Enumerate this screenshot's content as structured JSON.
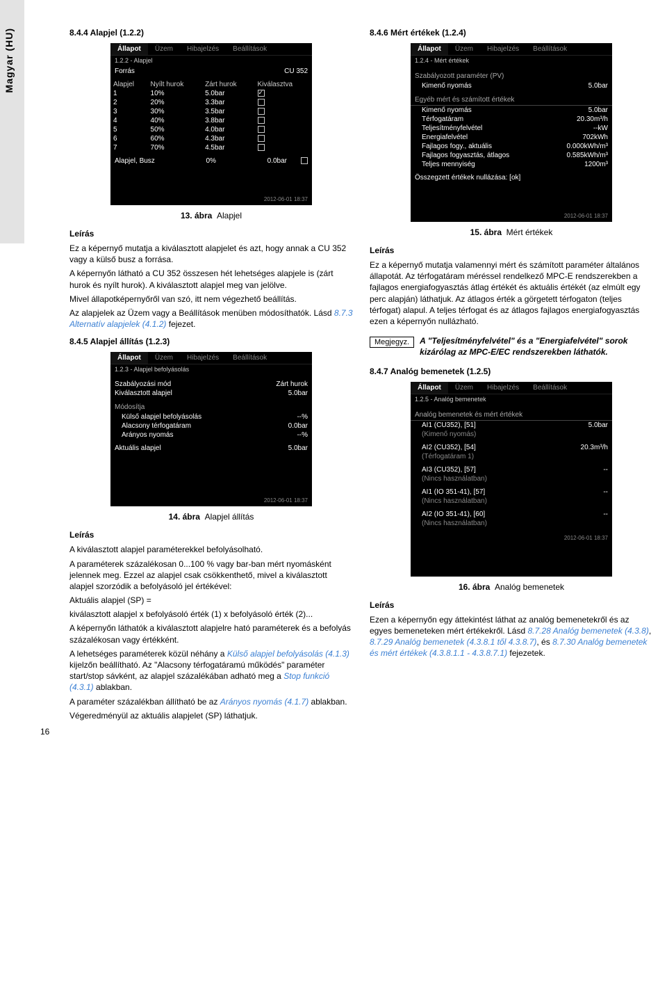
{
  "sidebar_label": "Magyar (HU)",
  "page_number": "16",
  "timestamp": "2012-06-01 18:37",
  "tabs": [
    "Állapot",
    "Üzem",
    "Hibajelzés",
    "Beállítások"
  ],
  "note_label": "Megjegyz.",
  "sec1": {
    "heading": "8.4.4 Alapjel (1.2.2)",
    "bread": "1.2.2 - Alapjel",
    "source_lbl": "Forrás",
    "source_val": "CU 352",
    "cols": [
      "Alapjel",
      "Nyílt hurok",
      "Zárt hurok",
      "Kiválasztva"
    ],
    "rows": [
      {
        "n": "1",
        "o": "10%",
        "c": "5.0bar",
        "sel": true
      },
      {
        "n": "2",
        "o": "20%",
        "c": "3.3bar",
        "sel": false
      },
      {
        "n": "3",
        "o": "30%",
        "c": "3.5bar",
        "sel": false
      },
      {
        "n": "4",
        "o": "40%",
        "c": "3.8bar",
        "sel": false
      },
      {
        "n": "5",
        "o": "50%",
        "c": "4.0bar",
        "sel": false
      },
      {
        "n": "6",
        "o": "60%",
        "c": "4.3bar",
        "sel": false
      },
      {
        "n": "7",
        "o": "70%",
        "c": "4.5bar",
        "sel": false
      }
    ],
    "bus_lbl": "Alapjel, Busz",
    "bus_o": "0%",
    "bus_c": "0.0bar",
    "caption": "13. ábra",
    "caption2": "Alapjel",
    "desc_h": "Leírás",
    "p1": "Ez a képernyő mutatja a kiválasztott alapjelet és azt, hogy annak a CU 352 vagy a külső busz a forrása.",
    "p2": "A képernyőn látható a CU 352 összesen hét lehetséges alapjele is (zárt hurok és nyílt hurok). A kiválasztott alapjel meg van jelölve.",
    "p3": "Mivel állapotképernyőről van szó, itt nem végezhető beállítás.",
    "p4a": "Az alapjelek az Üzem vagy a Beállítások menüben módosíthatók. Lásd ",
    "p4link": "8.7.3 Alternatív alapjelek (4.1.2)",
    "p4b": " fejezet."
  },
  "sec2": {
    "heading": "8.4.5 Alapjel állítás (1.2.3)",
    "bread": "1.2.3 - Alapjel befolyásolás",
    "r_mode_l": "Szabályozási mód",
    "r_mode_v": "Zárt hurok",
    "r_sp_l": "Kiválasztott alapjel",
    "r_sp_v": "5.0bar",
    "mods": "Módosítja",
    "m1_l": "Külső alapjel befolyásolás",
    "m1_v": "--%",
    "m2_l": "Alacsony térfogatáram",
    "m2_v": "0.0bar",
    "m3_l": "Arányos nyomás",
    "m3_v": "--%",
    "act_l": "Aktuális alapjel",
    "act_v": "5.0bar",
    "caption": "14. ábra",
    "caption2": "Alapjel állítás",
    "desc_h": "Leírás",
    "p1": "A kiválasztott alapjel paraméterekkel befolyásolható.",
    "p2": "A paraméterek százalékosan 0...100 % vagy bar-ban mért nyomásként jelennek meg. Ezzel az alapjel csak csökkenthető, mivel a kiválasztott alapjel szorzódik a befolyásoló jel értékével:",
    "p3": "Aktuális alapjel (SP) =",
    "p4": "kiválasztott alapjel x befolyásoló érték (1) x befolyásoló érték (2)...",
    "p5": "A képernyőn láthatók a kiválasztott alapjelre ható paraméterek és a befolyás százalékosan vagy értékként.",
    "p6a": "A lehetséges paraméterek közül néhány a ",
    "p6l": "Külső alapjel befolyásolás (4.1.3)",
    "p6b": " kijelzőn beállítható. Az \"Alacsony térfogatáramú működés\" paraméter start/stop sávként, az alapjel százalékában adható meg a ",
    "p6l2": "Stop funkció (4.3.1)",
    "p6c": " ablakban.",
    "p7a": "A paraméter százalékban állítható be az ",
    "p7l": "Arányos nyomás (4.1.7)",
    "p7b": " ablakban.",
    "p8": "Végeredményül az aktuális alapjelet (SP) láthatjuk."
  },
  "sec3": {
    "heading": "8.4.6 Mért értékek (1.2.4)",
    "bread": "1.2.4 - Mért értékek",
    "pv_h": "Szabályozott paraméter (PV)",
    "pv_l": "Kimenő nyomás",
    "pv_v": "5.0bar",
    "other_h": "Egyéb mért és számított értékek",
    "rows": [
      {
        "l": "Kimenő nyomás",
        "v": "5.0bar"
      },
      {
        "l": "Térfogatáram",
        "v": "20.30m³/h"
      },
      {
        "l": "Teljesítményfelvétel",
        "v": "--kW"
      },
      {
        "l": "Energiafelvétel",
        "v": "702kWh"
      },
      {
        "l": "Fajlagos fogy., aktuális",
        "v": "0.000kWh/m³"
      },
      {
        "l": "Fajlagos fogyasztás, átlagos",
        "v": "0.585kWh/m³"
      },
      {
        "l": "Teljes mennyiség",
        "v": "1200m³"
      }
    ],
    "reset": "Összegzett értékek nullázása: [ok]",
    "caption": "15. ábra",
    "caption2": "Mért értékek",
    "desc_h": "Leírás",
    "p1": "Ez a képernyő mutatja valamennyi mért és számított paraméter általános állapotát. Az térfogatáram méréssel rendelkező MPC-E rendszerekben a fajlagos energiafogyasztás átlag értékét és aktuális értékét (az elmúlt egy perc alapján) láthatjuk. Az átlagos érték a görgetett térfogaton (teljes térfogat) alapul. A teljes térfogat és az átlagos fajlagos energiafogyasztás ezen a képernyőn nullázható.",
    "note": "A \"Teljesítményfelvétel\" és a \"Energiafelvétel\" sorok kizárólag az MPC-E/EC rendszerekben láthatók."
  },
  "sec4": {
    "heading": "8.4.7 Analóg bemenetek (1.2.5)",
    "bread": "1.2.5 - Analóg bemenetek",
    "list_h": "Analóg bemenetek és mért értékek",
    "rows": [
      {
        "t": "AI1 (CU352), [51]",
        "s": "(Kimenő nyomás)",
        "v": "5.0bar"
      },
      {
        "t": "AI2 (CU352), [54]",
        "s": "(Térfogatáram 1)",
        "v": "20.3m³/h"
      },
      {
        "t": "AI3 (CU352), [57]",
        "s": "(Nincs használatban)",
        "v": "--"
      },
      {
        "t": "AI1 (IO 351-41), [57]",
        "s": "(Nincs használatban)",
        "v": "--"
      },
      {
        "t": "AI2 (IO 351-41), [60]",
        "s": "(Nincs használatban)",
        "v": "--"
      }
    ],
    "caption": "16. ábra",
    "caption2": "Analóg bemenetek",
    "desc_h": "Leírás",
    "p1a": "Ezen a képernyőn egy áttekintést láthat az analóg bemenetekről és az egyes bemeneteken mért értékekről. Lásd ",
    "l1": "8.7.28 Analóg bemenetek (4.3.8)",
    "c1": ", ",
    "l2": "8.7.29 Analóg bemenetek (4.3.8.1 től 4.3.8.7)",
    "c2": ", és ",
    "l3": "8.7.30 Analóg bemenetek és mért értékek (4.3.8.1.1 - 4.3.8.7.1)",
    "p1b": " fejezetek."
  }
}
